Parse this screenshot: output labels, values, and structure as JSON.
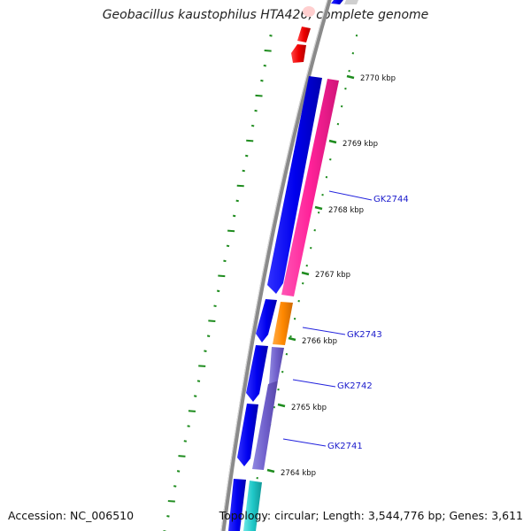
{
  "title": "Geobacillus kaustophilus HTA426, complete genome",
  "accession": "Accession: NC_006510",
  "summary": "Topology: circular; Length: 3,544,776 bp; Genes: 3,611",
  "ticks": [
    "2770 kbp",
    "2769 kbp",
    "2768 kbp",
    "2767 kbp",
    "2766 kbp",
    "2765 kbp",
    "2764 kbp"
  ],
  "gene_labels": [
    "GK2744",
    "GK2743",
    "GK2742",
    "GK2741"
  ],
  "colors": {
    "backbone": "#7a7a7a",
    "forward_cds": "#0000ee",
    "reverse_red": "#ee0000",
    "magenta": "#ff2299",
    "orange": "#ff8800",
    "purple": "#7060cc",
    "cyan": "#20c8c8",
    "gc_tick": "#1e8c1e",
    "label_line": "#2222dd"
  }
}
